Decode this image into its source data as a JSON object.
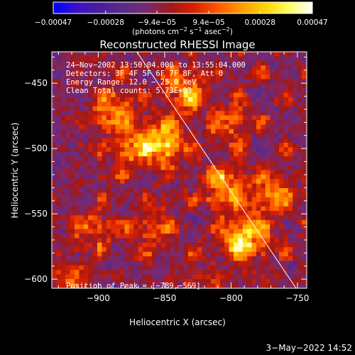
{
  "colorbar": {
    "tick_labels": [
      "−0.00047",
      "−0.00028",
      "−9.4e−05",
      "9.4e−05",
      "0.00028",
      "0.00047"
    ],
    "tick_values": [
      -0.00047,
      -0.00028,
      -9.4e-05,
      9.4e-05,
      0.00028,
      0.00047
    ],
    "range": [
      -0.00047,
      0.00047
    ],
    "unit_base": "(photons cm",
    "unit_sup1": "−2",
    "unit_mid": " s",
    "unit_sup2": "−1",
    "unit_end": " asec",
    "unit_sup3": "−2",
    "unit_close": ")",
    "colors": [
      "#0000ff",
      "#3a12c8",
      "#4b1e9a",
      "#5a2a8a",
      "#7a2a70",
      "#a01818",
      "#d82000",
      "#ff5a00",
      "#ff9a00",
      "#ffd400",
      "#ffff60",
      "#ffffff"
    ]
  },
  "chart_data": {
    "type": "heatmap",
    "title": "Reconstructed RHESSI Image",
    "xlabel": "Heliocentric X (arcsec)",
    "ylabel": "Heliocentric Y (arcsec)",
    "xlim": [
      -935,
      -743
    ],
    "ylim": [
      -607,
      -426
    ],
    "x_ticks": [
      -900,
      -850,
      -800,
      -750
    ],
    "x_tick_labels": [
      "−900",
      "−850",
      "−800",
      "−750"
    ],
    "y_ticks": [
      -450,
      -500,
      -550,
      -600
    ],
    "y_tick_labels": [
      "−450",
      "−500",
      "−550",
      "−600"
    ],
    "annotations": [
      "24−Nov−2002 13:50:04.000 to 13:55:04.000",
      "Detectors: 3F 4F 5F 6F 7F 8F, Att 0",
      "Energy Range: 12.0 − 25.0 keV",
      "Clean     Total counts: 5.73E+03"
    ],
    "peak_label": "Position of Peak = [−789,−569]",
    "peak": [
      -789,
      -569
    ],
    "limb_line": [
      [
        -871,
        -426
      ],
      [
        -751,
        -607
      ]
    ],
    "sources": [
      {
        "x": -850,
        "y": -495,
        "value": 0.0004
      },
      {
        "x": -790,
        "y": -569,
        "value": 0.00047
      },
      {
        "x": -805,
        "y": -530,
        "value": 0.00034
      },
      {
        "x": -875,
        "y": -500,
        "value": 0.0003
      },
      {
        "x": -890,
        "y": -470,
        "value": 0.00028
      },
      {
        "x": -835,
        "y": -455,
        "value": 0.0003
      },
      {
        "x": -770,
        "y": -535,
        "value": 0.00026
      },
      {
        "x": -905,
        "y": -560,
        "value": 0.00022
      },
      {
        "x": -800,
        "y": -480,
        "value": 0.0002
      },
      {
        "x": -860,
        "y": -560,
        "value": 0.0002
      },
      {
        "x": -920,
        "y": -600,
        "value": 0.00018
      },
      {
        "x": -820,
        "y": -605,
        "value": 0.00016
      }
    ]
  },
  "timestamp": "3−May−2022 14:52"
}
